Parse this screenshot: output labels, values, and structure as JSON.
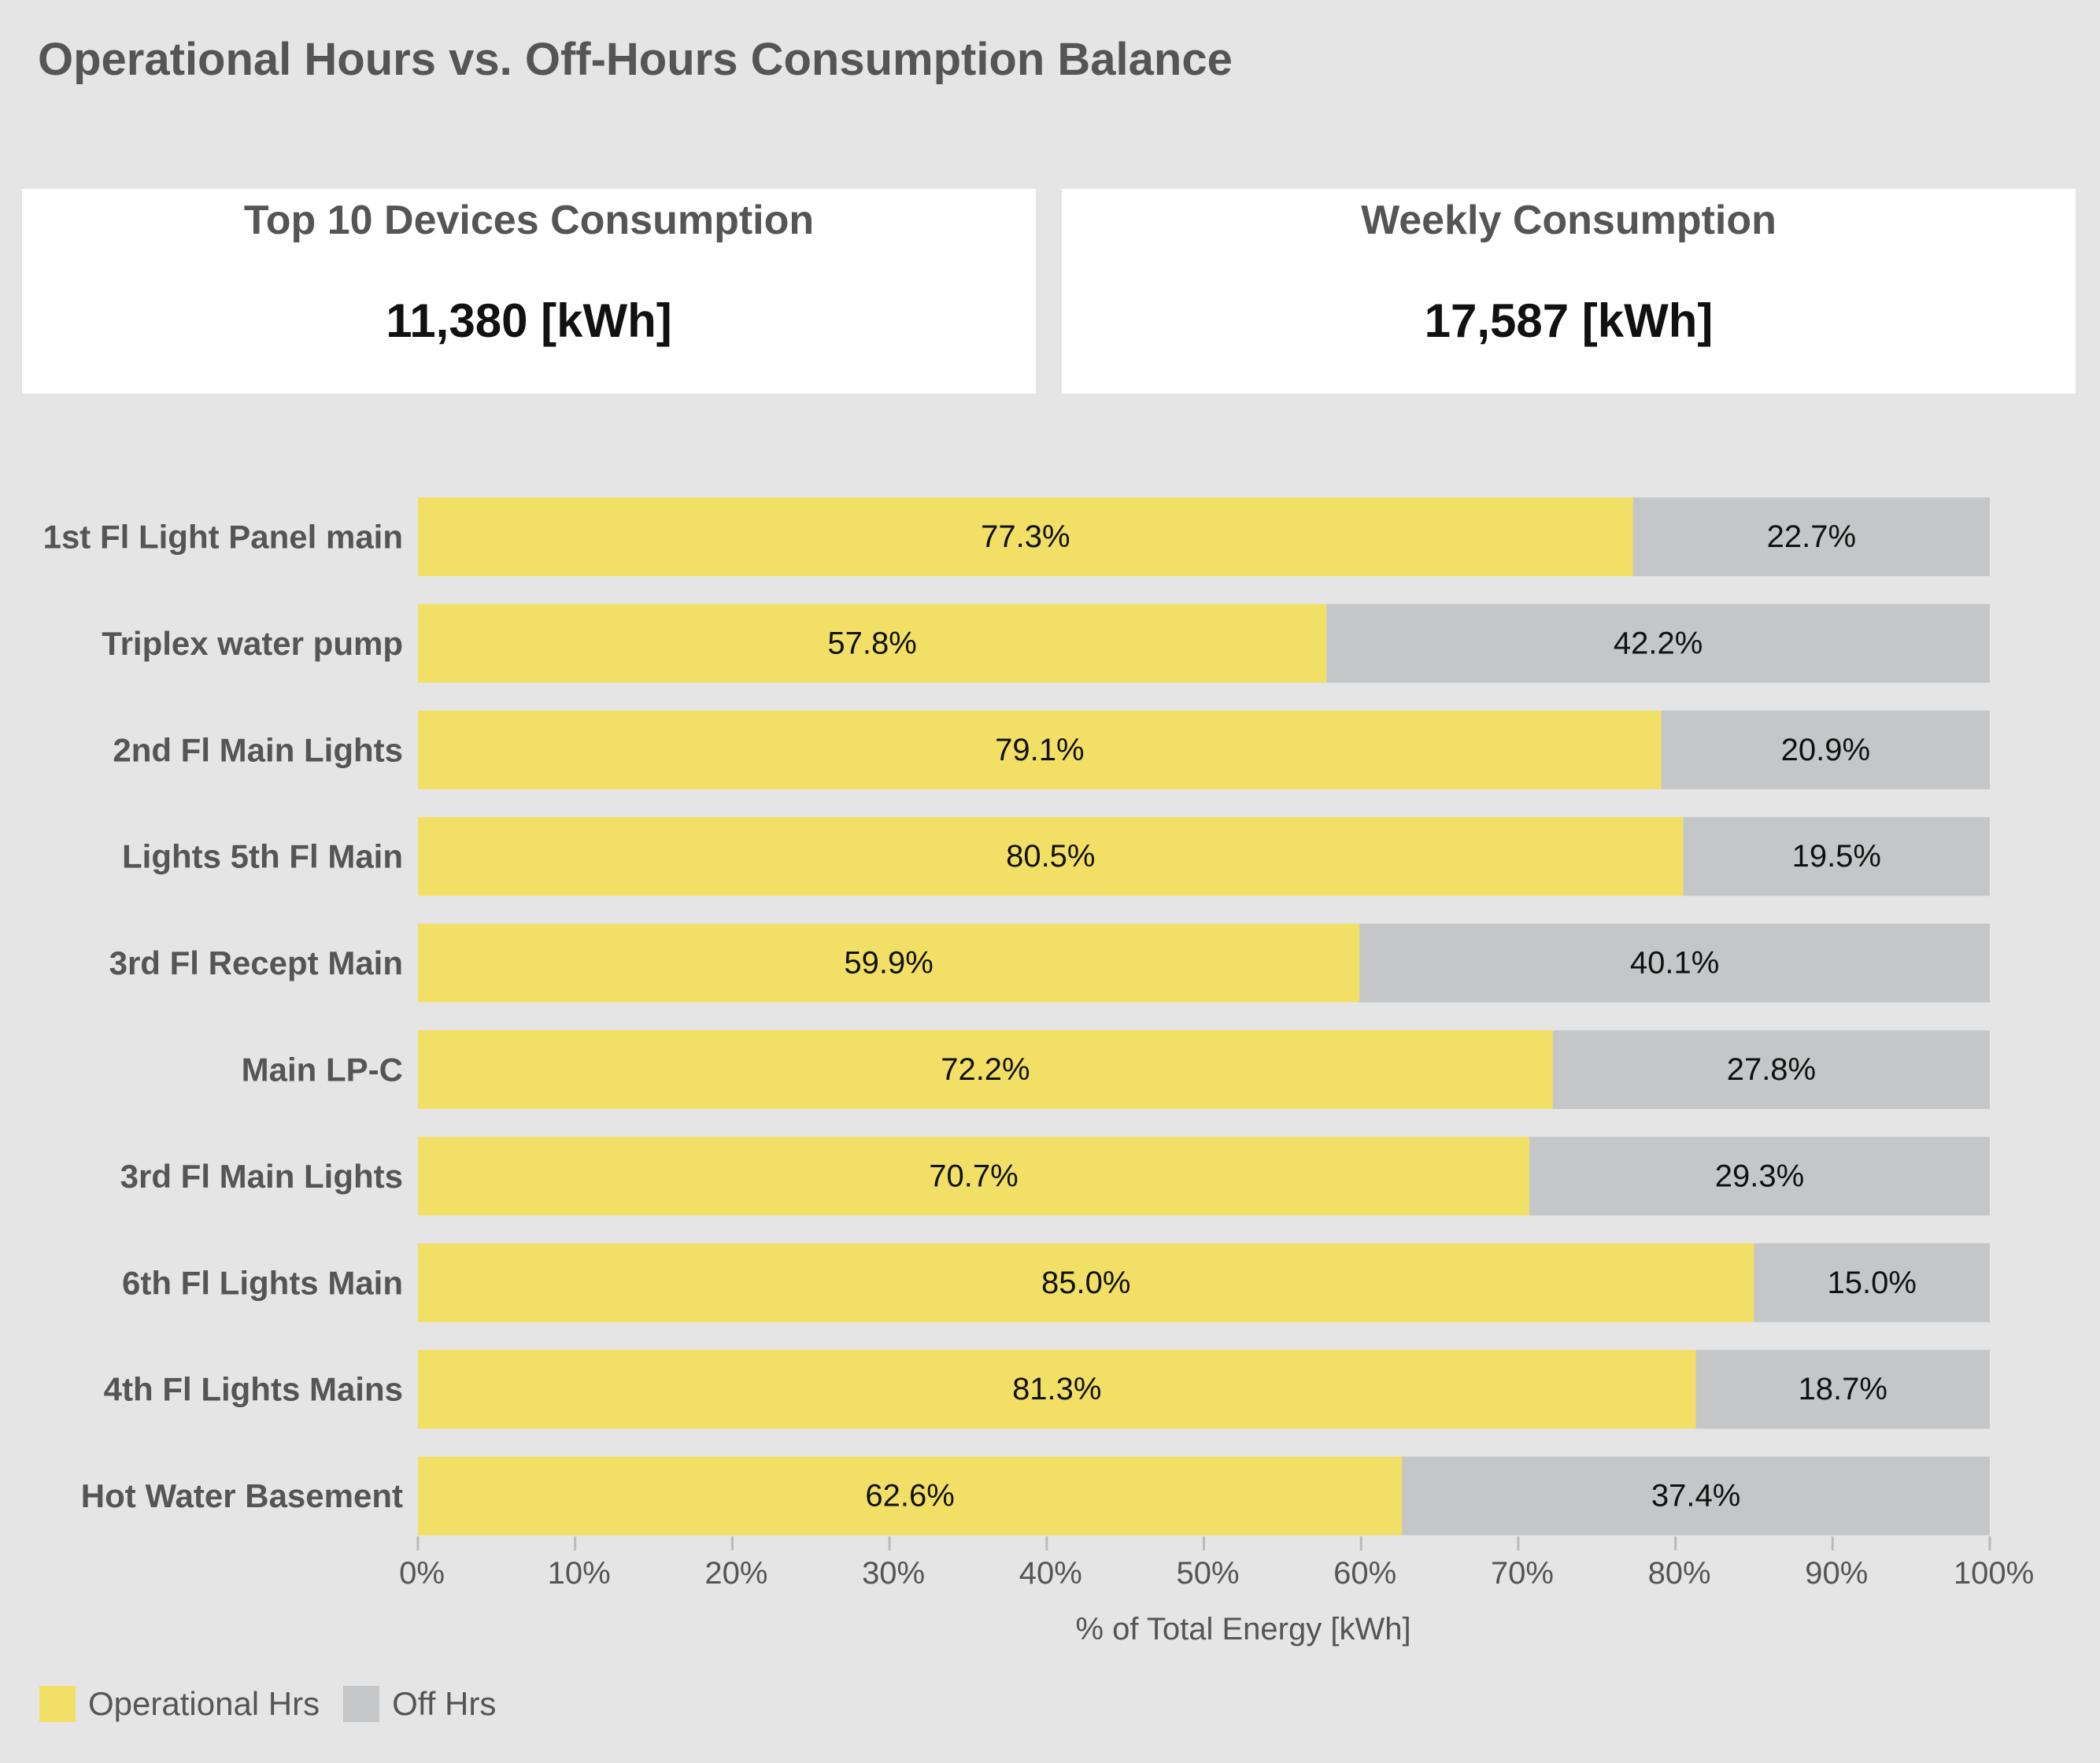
{
  "title": "Operational Hours vs. Off-Hours Consumption Balance",
  "kpis": {
    "top10": {
      "label": "Top 10 Devices Consumption",
      "value": "11,380 [kWh]"
    },
    "weekly": {
      "label": "Weekly Consumption",
      "value": "17,587 [kWh]"
    }
  },
  "colors": {
    "operational": "#f2e066",
    "off": "#c5c6c7",
    "text": "#555555"
  },
  "chart_data": {
    "type": "bar",
    "orientation": "horizontal",
    "stacked": true,
    "categories": [
      "1st Fl Light Panel main",
      "Triplex water pump",
      "2nd Fl Main Lights",
      "Lights 5th Fl Main",
      "3rd Fl Recept Main",
      "Main LP-C",
      "3rd Fl Main Lights",
      "6th Fl Lights Main",
      "4th Fl Lights Mains",
      "Hot Water Basement"
    ],
    "series": [
      {
        "name": "Operational Hrs",
        "values": [
          77.3,
          57.8,
          79.1,
          80.5,
          59.9,
          72.2,
          70.7,
          85.0,
          81.3,
          62.6
        ]
      },
      {
        "name": "Off Hrs",
        "values": [
          22.7,
          42.2,
          20.9,
          19.5,
          40.1,
          27.8,
          29.3,
          15.0,
          18.7,
          37.4
        ]
      }
    ],
    "xlabel": "% of Total Energy [kWh]",
    "xlim": [
      0,
      100
    ],
    "xticks": [
      "0%",
      "10%",
      "20%",
      "30%",
      "40%",
      "50%",
      "60%",
      "70%",
      "80%",
      "90%",
      "100%"
    ],
    "grid": false,
    "legend": "bottom-left"
  }
}
